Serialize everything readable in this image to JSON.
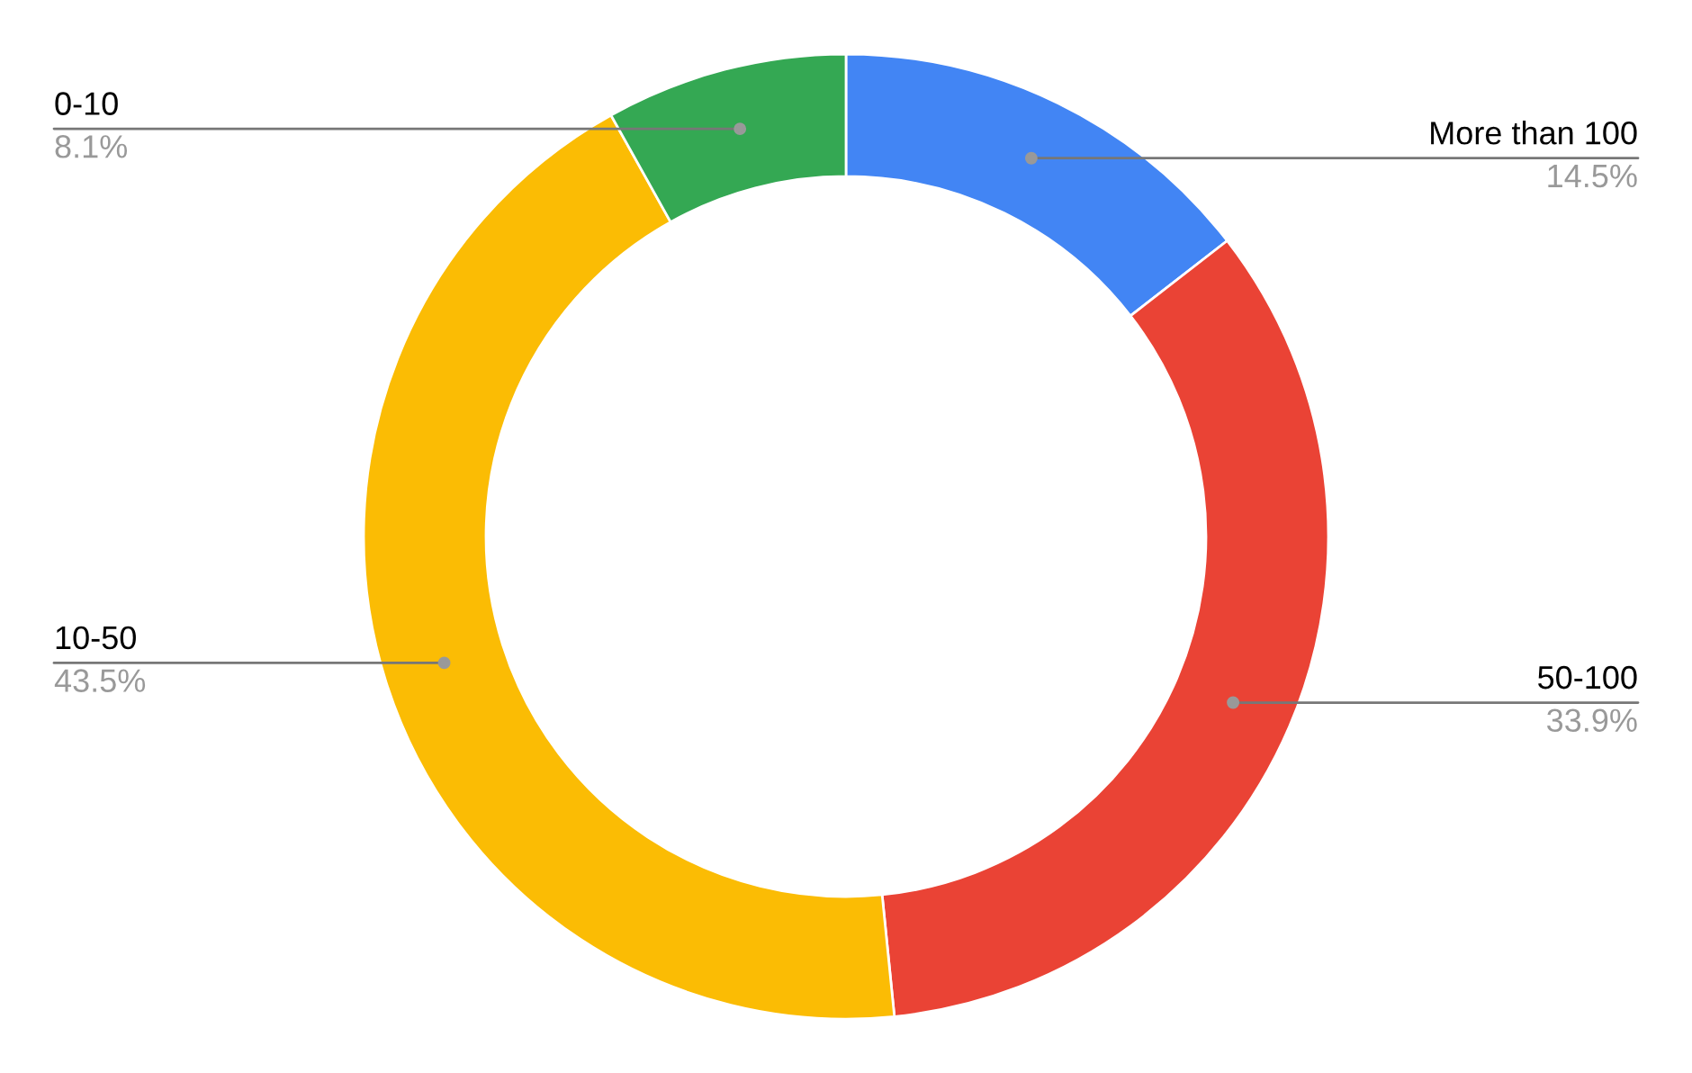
{
  "chart_data": {
    "type": "donut",
    "categories": [
      "More than 100",
      "50-100",
      "10-50",
      "0-10"
    ],
    "values": [
      14.5,
      33.9,
      43.5,
      8.1
    ],
    "value_labels": [
      "14.5%",
      "33.9%",
      "43.5%",
      "8.1%"
    ],
    "colors": [
      "#4285f4",
      "#ea4335",
      "#fbbc04",
      "#34a853"
    ],
    "legend": false
  }
}
